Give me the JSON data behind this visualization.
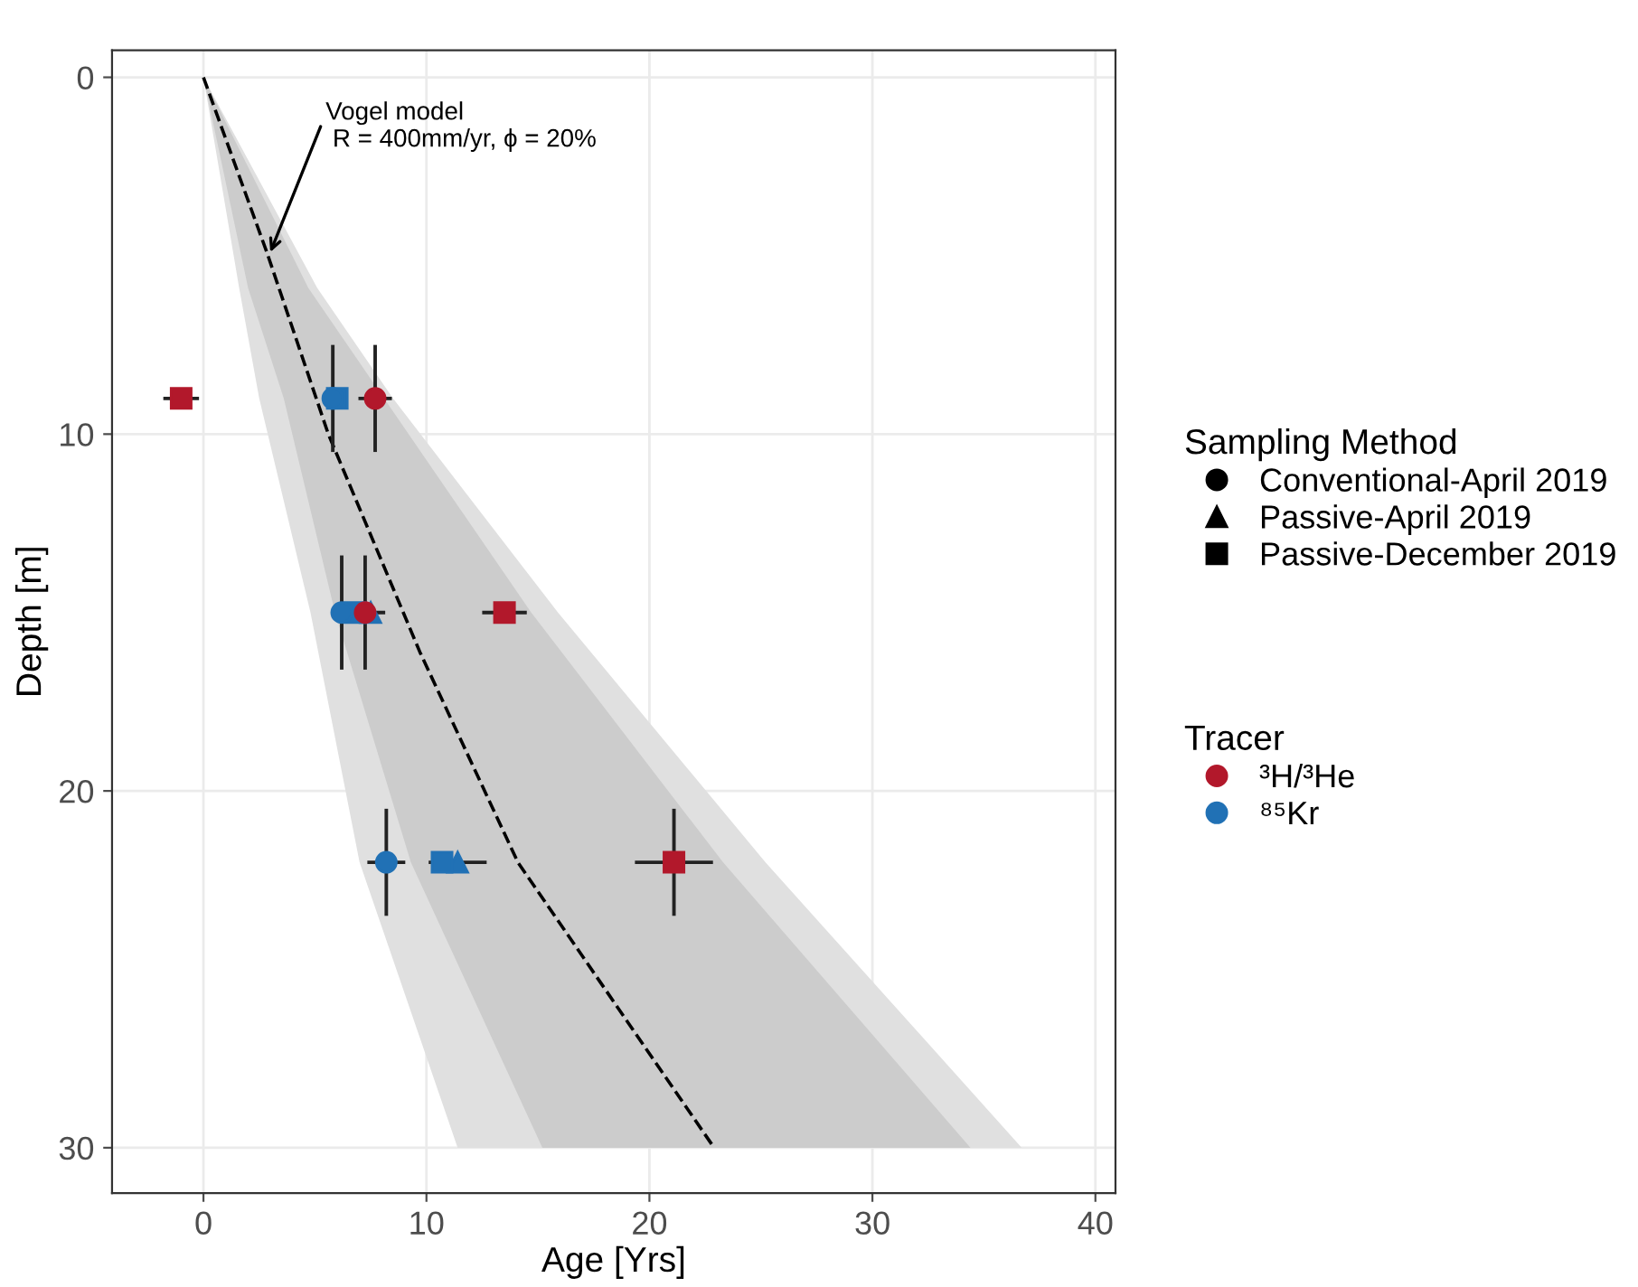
{
  "chart_data": {
    "type": "scatter",
    "xlabel": "Age [Yrs]",
    "ylabel": "Depth [m]",
    "xlim": [
      -4.1,
      40.9
    ],
    "ylim": [
      31.27,
      -0.76
    ],
    "xticks": [
      0,
      10,
      20,
      30,
      40
    ],
    "yticks": [
      0,
      10,
      20,
      30
    ],
    "grid": true,
    "legend": "right",
    "legend_title": [
      "Sampling Method",
      "Tracer"
    ],
    "series": [
      {
        "type": "area",
        "color": "#e0e0e0",
        "x": [
          0,
          1.6,
          2.5,
          4.8,
          7.0,
          11.4,
          36.7,
          25.2,
          15.9,
          8.5,
          5.1,
          0
        ],
        "values": [
          0,
          5.9,
          9,
          15,
          22,
          30,
          30,
          22,
          15,
          9,
          5.9,
          0
        ]
      },
      {
        "type": "area",
        "color": "#cccccc",
        "x": [
          0,
          2.0,
          3.6,
          5.9,
          9.3,
          15.2,
          34.4,
          23.3,
          14.7,
          8.1,
          4.7,
          0
        ],
        "values": [
          0,
          5.9,
          9,
          15,
          22,
          30,
          30,
          22,
          15,
          9,
          5.9,
          0
        ]
      },
      {
        "type": "line",
        "color": "#000000",
        "line_style": "dashed",
        "x": [
          0,
          2.84,
          5.6,
          9.7,
          14.1,
          22.9
        ],
        "values": [
          0,
          4.9,
          10,
          16.1,
          22,
          30
        ]
      },
      {
        "name": "Conventional-April 2019",
        "marker": "circle",
        "x": [
          7.7,
          7.25,
          5.8,
          6.2,
          8.2
        ],
        "values": [
          9,
          15,
          9,
          15,
          22
        ],
        "colors": [
          "#b2182b",
          "#b2182b",
          "#2171b5",
          "#2171b5",
          "#2171b5"
        ],
        "errors": [
          1.5,
          1.6,
          1.5,
          1.6,
          1.5
        ],
        "xerrors": [
          0.75,
          0.9,
          null,
          null,
          0.85
        ]
      },
      {
        "name": "Passive-April 2019",
        "marker": "triangle",
        "x": [
          7.5,
          11.4
        ],
        "values": [
          15,
          22
        ],
        "colors": [
          "#2171b5",
          "#2171b5"
        ],
        "xerrors": [
          null,
          1.3
        ]
      },
      {
        "name": "Passive-December 2019",
        "marker": "square",
        "x": [
          -1.0,
          13.5,
          21.1,
          6.0,
          6.8,
          10.7
        ],
        "values": [
          9,
          15,
          22,
          9,
          15,
          22
        ],
        "colors": [
          "#b2182b",
          "#b2182b",
          "#b2182b",
          "#2171b5",
          "#2171b5",
          "#2171b5"
        ],
        "errors": [
          null,
          null,
          1.5,
          null,
          null,
          null
        ],
        "xerrors": [
          0.8,
          1.0,
          1.75,
          null,
          null,
          null
        ]
      },
      {
        "name": "³H/³He",
        "color": "#b2182b",
        "marker": "circle"
      },
      {
        "name": "⁸⁵Kr",
        "color": "#2171b5",
        "marker": "circle"
      }
    ],
    "annotations": [
      {
        "text": "Vogel model\n R = 400mm/yr, ϕ = 20%",
        "x": 3.0,
        "y": 4.9
      }
    ]
  }
}
